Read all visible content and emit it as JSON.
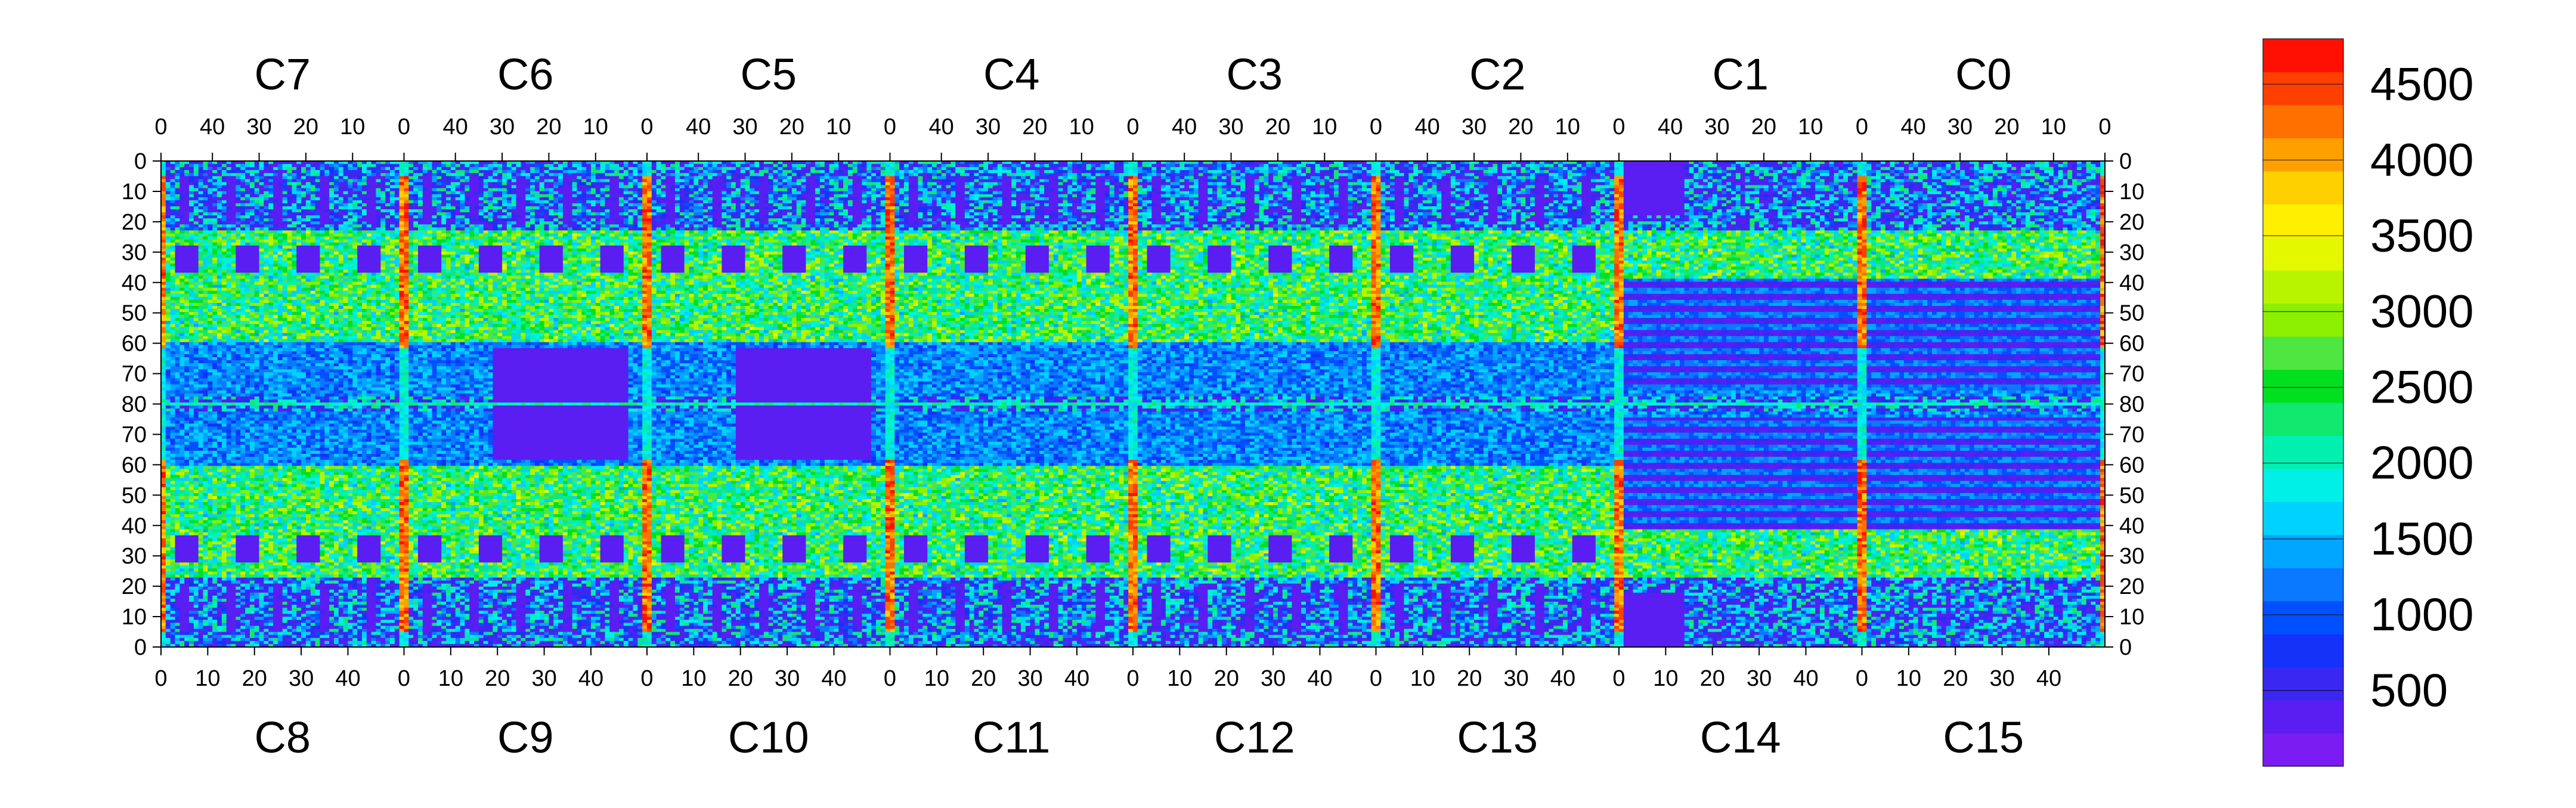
{
  "chart_data": {
    "type": "heatmap",
    "title": "",
    "xlabel": "",
    "ylabel": "",
    "top_chips": [
      "C7",
      "C6",
      "C5",
      "C4",
      "C3",
      "C2",
      "C1",
      "C0"
    ],
    "bottom_chips": [
      "C8",
      "C9",
      "C10",
      "C11",
      "C12",
      "C13",
      "C14",
      "C15"
    ],
    "top_x_ticks": [
      "40",
      "30",
      "20",
      "10",
      "0"
    ],
    "top_x_ticks_first": [
      "0"
    ],
    "bottom_x_ticks": [
      "0",
      "10",
      "20",
      "30",
      "40"
    ],
    "y_ticks": [
      "0",
      "10",
      "20",
      "30",
      "40",
      "50",
      "60",
      "70",
      "80",
      "70",
      "60",
      "50",
      "40",
      "30",
      "20",
      "10",
      "0"
    ],
    "chip_columns": 52,
    "row_range": [
      0,
      80
    ],
    "colorbar": {
      "range": [
        0,
        4800
      ],
      "ticks": [
        "500",
        "1000",
        "1500",
        "2000",
        "2500",
        "3000",
        "3500",
        "4000",
        "4500"
      ],
      "tick_values": [
        500,
        1000,
        1500,
        2000,
        2500,
        3000,
        3500,
        4000,
        4500
      ],
      "colors": [
        "#7a1cf2",
        "#5a1ef2",
        "#3a28f2",
        "#1432f8",
        "#0050ff",
        "#0a78ff",
        "#00a6ff",
        "#00d2ff",
        "#00f0e8",
        "#00f0b0",
        "#10e870",
        "#00e020",
        "#4ee640",
        "#8cf000",
        "#b8f400",
        "#e4f800",
        "#fff000",
        "#ffd000",
        "#ffa000",
        "#ff7000",
        "#ff4000",
        "#ff1000"
      ]
    },
    "grid": false,
    "legend": "colorbar right"
  }
}
